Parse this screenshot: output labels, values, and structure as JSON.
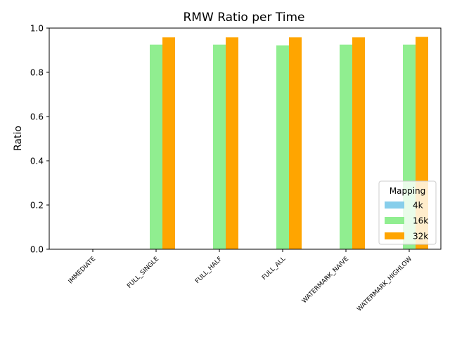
{
  "chart_data": {
    "type": "bar",
    "title": "RMW Ratio per Time",
    "xlabel": "",
    "ylabel": "Ratio",
    "ylim": [
      0,
      1.0
    ],
    "yticks": [
      "0.0",
      "0.2",
      "0.4",
      "0.6",
      "0.8",
      "1.0"
    ],
    "categories": [
      "IMMEDIATE",
      "FULL_SINGLE",
      "FULL_HALF",
      "FULL_ALL",
      "WATERMARK_NAIVE",
      "WATERMARK_HIGHLOW"
    ],
    "series": [
      {
        "name": "4k",
        "color": "#87ceeb",
        "values": [
          0,
          0,
          0,
          0,
          0,
          0
        ]
      },
      {
        "name": "16k",
        "color": "#90ee90",
        "values": [
          0,
          0.925,
          0.925,
          0.922,
          0.925,
          0.925
        ]
      },
      {
        "name": "32k",
        "color": "#ffa500",
        "values": [
          0,
          0.958,
          0.958,
          0.958,
          0.958,
          0.96
        ]
      }
    ],
    "legend": {
      "title": "Mapping",
      "placement": "lower-right"
    },
    "grid": false
  }
}
